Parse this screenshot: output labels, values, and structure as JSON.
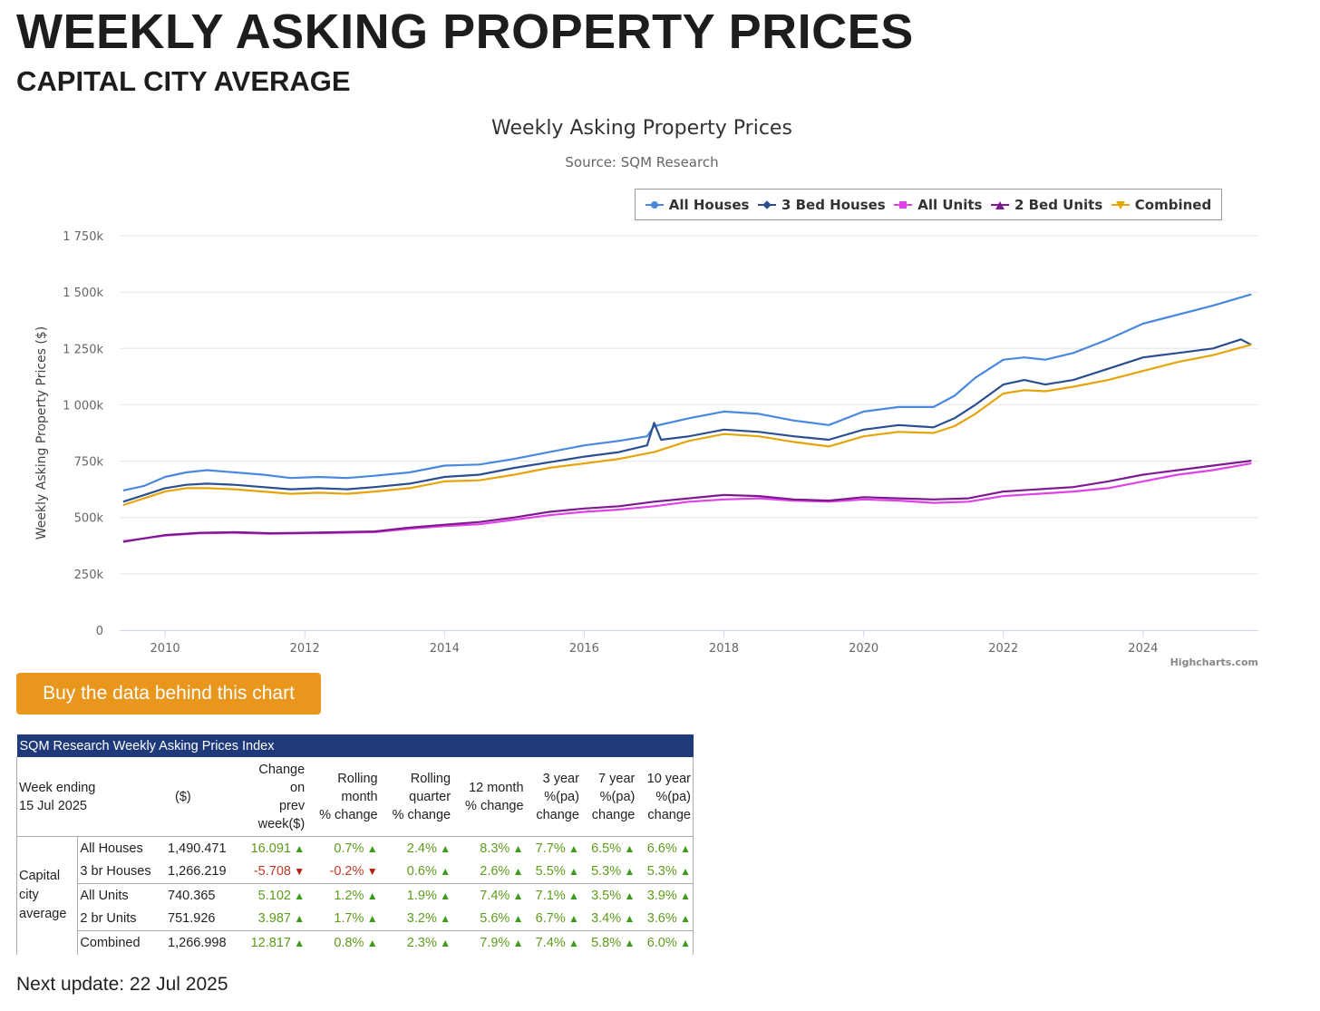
{
  "page": {
    "title": "WEEKLY ASKING PROPERTY PRICES",
    "subtitle": "CAPITAL CITY AVERAGE",
    "buy_button": "Buy the data behind this chart",
    "next_update": "Next update: 22 Jul 2025",
    "credits": "Highcharts.com"
  },
  "chart_data": {
    "type": "line",
    "title": "Weekly Asking Property Prices",
    "subtitle": "Source: SQM Research",
    "ylabel": "Weekly Asking Property Prices ($)",
    "xlabel": "",
    "ylim": [
      0,
      1750000
    ],
    "xlim": [
      2009.35,
      2025.65
    ],
    "yticks": [
      0,
      250000,
      500000,
      750000,
      1000000,
      1250000,
      1500000,
      1750000
    ],
    "ytick_labels": [
      "0",
      "250k",
      "500k",
      "750k",
      "1 000k",
      "1 250k",
      "1 500k",
      "1 750k"
    ],
    "xticks": [
      2010,
      2012,
      2014,
      2016,
      2018,
      2020,
      2022,
      2024
    ],
    "xtick_labels": [
      "2010",
      "2012",
      "2014",
      "2016",
      "2018",
      "2020",
      "2022",
      "2024"
    ],
    "grid": true,
    "legend_position": "top-right",
    "series": [
      {
        "name": "All Houses",
        "color": "#4a88e0",
        "marker": "circle",
        "x": [
          2009.4,
          2009.7,
          2010.0,
          2010.3,
          2010.6,
          2011.0,
          2011.4,
          2011.8,
          2012.2,
          2012.6,
          2013.0,
          2013.5,
          2014.0,
          2014.5,
          2015.0,
          2015.5,
          2016.0,
          2016.5,
          2016.9,
          2017.0,
          2017.5,
          2018.0,
          2018.5,
          2019.0,
          2019.5,
          2020.0,
          2020.5,
          2021.0,
          2021.3,
          2021.6,
          2022.0,
          2022.3,
          2022.6,
          2023.0,
          2023.5,
          2024.0,
          2024.5,
          2025.0,
          2025.55
        ],
        "values": [
          620000,
          640000,
          680000,
          700000,
          710000,
          700000,
          690000,
          675000,
          680000,
          675000,
          685000,
          700000,
          730000,
          735000,
          760000,
          790000,
          820000,
          840000,
          860000,
          905000,
          940000,
          970000,
          960000,
          930000,
          910000,
          970000,
          990000,
          990000,
          1040000,
          1120000,
          1200000,
          1210000,
          1200000,
          1230000,
          1290000,
          1360000,
          1400000,
          1440000,
          1490000
        ]
      },
      {
        "name": "3 Bed Houses",
        "color": "#2b4f8e",
        "marker": "diamond",
        "x": [
          2009.4,
          2009.7,
          2010.0,
          2010.3,
          2010.6,
          2011.0,
          2011.4,
          2011.8,
          2012.2,
          2012.6,
          2013.0,
          2013.5,
          2014.0,
          2014.5,
          2015.0,
          2015.5,
          2016.0,
          2016.5,
          2016.9,
          2017.0,
          2017.1,
          2017.5,
          2018.0,
          2018.5,
          2019.0,
          2019.5,
          2020.0,
          2020.5,
          2021.0,
          2021.3,
          2021.6,
          2022.0,
          2022.3,
          2022.6,
          2023.0,
          2023.5,
          2024.0,
          2024.5,
          2025.0,
          2025.4,
          2025.55
        ],
        "values": [
          570000,
          600000,
          630000,
          645000,
          650000,
          645000,
          635000,
          625000,
          630000,
          625000,
          635000,
          650000,
          680000,
          690000,
          720000,
          745000,
          770000,
          790000,
          820000,
          920000,
          845000,
          860000,
          890000,
          880000,
          860000,
          845000,
          890000,
          910000,
          900000,
          940000,
          1000000,
          1090000,
          1110000,
          1090000,
          1110000,
          1160000,
          1210000,
          1230000,
          1250000,
          1290000,
          1266000
        ]
      },
      {
        "name": "All Units",
        "color": "#e040e8",
        "marker": "square",
        "x": [
          2009.4,
          2010.0,
          2010.5,
          2011.0,
          2011.5,
          2012.0,
          2012.5,
          2013.0,
          2013.5,
          2014.0,
          2014.5,
          2015.0,
          2015.5,
          2016.0,
          2016.5,
          2017.0,
          2017.5,
          2018.0,
          2018.5,
          2019.0,
          2019.5,
          2020.0,
          2020.5,
          2021.0,
          2021.5,
          2022.0,
          2022.5,
          2023.0,
          2023.5,
          2024.0,
          2024.5,
          2025.0,
          2025.55
        ],
        "values": [
          395000,
          420000,
          430000,
          432000,
          428000,
          430000,
          432000,
          435000,
          450000,
          462000,
          470000,
          490000,
          510000,
          525000,
          535000,
          550000,
          570000,
          580000,
          585000,
          575000,
          570000,
          580000,
          575000,
          565000,
          570000,
          595000,
          605000,
          615000,
          630000,
          660000,
          690000,
          710000,
          740000
        ]
      },
      {
        "name": "2 Bed Units",
        "color": "#7d1a8f",
        "marker": "triangle",
        "x": [
          2009.4,
          2010.0,
          2010.5,
          2011.0,
          2011.5,
          2012.0,
          2012.5,
          2013.0,
          2013.5,
          2014.0,
          2014.5,
          2015.0,
          2015.5,
          2016.0,
          2016.5,
          2017.0,
          2017.5,
          2018.0,
          2018.5,
          2019.0,
          2019.5,
          2020.0,
          2020.5,
          2021.0,
          2021.5,
          2022.0,
          2022.5,
          2023.0,
          2023.5,
          2024.0,
          2024.5,
          2025.0,
          2025.55
        ],
        "values": [
          392000,
          422000,
          432000,
          435000,
          430000,
          432000,
          435000,
          438000,
          455000,
          468000,
          480000,
          500000,
          525000,
          540000,
          550000,
          570000,
          585000,
          600000,
          595000,
          580000,
          575000,
          590000,
          585000,
          580000,
          585000,
          615000,
          625000,
          635000,
          660000,
          690000,
          710000,
          730000,
          752000
        ]
      },
      {
        "name": "Combined",
        "color": "#e5a50a",
        "marker": "triangle-down",
        "x": [
          2009.4,
          2009.7,
          2010.0,
          2010.3,
          2010.6,
          2011.0,
          2011.4,
          2011.8,
          2012.2,
          2012.6,
          2013.0,
          2013.5,
          2014.0,
          2014.5,
          2015.0,
          2015.5,
          2016.0,
          2016.5,
          2017.0,
          2017.5,
          2018.0,
          2018.5,
          2019.0,
          2019.5,
          2020.0,
          2020.5,
          2021.0,
          2021.3,
          2021.6,
          2022.0,
          2022.3,
          2022.6,
          2023.0,
          2023.5,
          2024.0,
          2024.5,
          2025.0,
          2025.55
        ],
        "values": [
          555000,
          585000,
          615000,
          630000,
          630000,
          625000,
          615000,
          605000,
          610000,
          605000,
          615000,
          630000,
          660000,
          665000,
          690000,
          720000,
          740000,
          760000,
          790000,
          840000,
          870000,
          860000,
          835000,
          815000,
          860000,
          880000,
          875000,
          905000,
          960000,
          1050000,
          1065000,
          1060000,
          1080000,
          1110000,
          1150000,
          1190000,
          1220000,
          1267000
        ]
      }
    ]
  },
  "table": {
    "caption": "SQM Research Weekly Asking Prices Index",
    "header": {
      "week_label": "Week ending",
      "week_date": "15 Jul 2025",
      "price": "($)",
      "c1": [
        "Change",
        "on",
        "prev",
        "week($)"
      ],
      "c2": [
        "Rolling",
        "month",
        "% change"
      ],
      "c3": [
        "Rolling",
        "quarter",
        "% change"
      ],
      "c4": [
        "12 month",
        "% change"
      ],
      "c5": [
        "3 year",
        "%(pa)",
        "change"
      ],
      "c6": [
        "7 year",
        "%(pa)",
        "change"
      ],
      "c7": [
        "10 year",
        "%(pa)",
        "change"
      ]
    },
    "group_label": [
      "Capital",
      "city",
      "average"
    ],
    "rows": [
      {
        "label": "All Houses",
        "value": "1,490.471",
        "changes": [
          "16.091",
          "0.7%",
          "2.4%",
          "8.3%",
          "7.7%",
          "6.5%",
          "6.6%"
        ],
        "dirs": [
          "up",
          "up",
          "up",
          "up",
          "up",
          "up",
          "up"
        ]
      },
      {
        "label": "3 br Houses",
        "value": "1,266.219",
        "changes": [
          "-5.708",
          "-0.2%",
          "0.6%",
          "2.6%",
          "5.5%",
          "5.3%",
          "5.3%"
        ],
        "dirs": [
          "down",
          "down",
          "up",
          "up",
          "up",
          "up",
          "up"
        ]
      },
      {
        "label": "All Units",
        "value": "740.365",
        "changes": [
          "5.102",
          "1.2%",
          "1.9%",
          "7.4%",
          "7.1%",
          "3.5%",
          "3.9%"
        ],
        "dirs": [
          "up",
          "up",
          "up",
          "up",
          "up",
          "up",
          "up"
        ]
      },
      {
        "label": "2 br Units",
        "value": "751.926",
        "changes": [
          "3.987",
          "1.7%",
          "3.2%",
          "5.6%",
          "6.7%",
          "3.4%",
          "3.6%"
        ],
        "dirs": [
          "up",
          "up",
          "up",
          "up",
          "up",
          "up",
          "up"
        ]
      },
      {
        "label": "Combined",
        "value": "1,266.998",
        "changes": [
          "12.817",
          "0.8%",
          "2.3%",
          "7.9%",
          "7.4%",
          "5.8%",
          "6.0%"
        ],
        "dirs": [
          "up",
          "up",
          "up",
          "up",
          "up",
          "up",
          "up"
        ]
      }
    ]
  }
}
